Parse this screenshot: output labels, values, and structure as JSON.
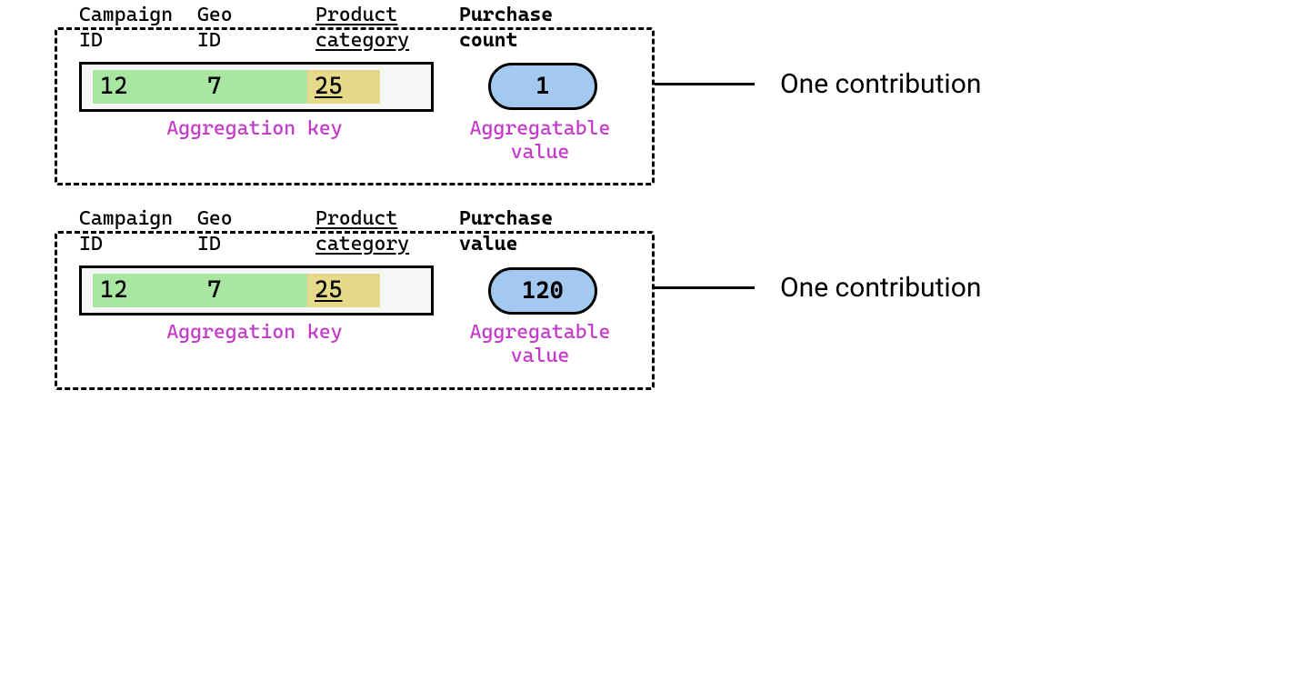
{
  "colors": {
    "chip_green": "#a8e6a1",
    "chip_yellow": "#e6d98a",
    "pill_blue": "#a4c9f0",
    "caption_magenta": "#c43bca",
    "border_black": "#000000",
    "bg_white": "#ffffff",
    "keybar_bg": "#f6f6f6"
  },
  "columns": {
    "campaign": "Campaign\nID",
    "geo": "Geo\nID",
    "product": "Product\ncategory"
  },
  "captions": {
    "key": "Aggregation key",
    "value": "Aggregatable\nvalue"
  },
  "external_label": "One contribution",
  "contributions": [
    {
      "metric_label": "Purchase\ncount",
      "key": {
        "campaign": "12",
        "geo": "7",
        "product": "25"
      },
      "value": "1"
    },
    {
      "metric_label": "Purchase\nvalue",
      "key": {
        "campaign": "12",
        "geo": "7",
        "product": "25"
      },
      "value": "120"
    }
  ]
}
